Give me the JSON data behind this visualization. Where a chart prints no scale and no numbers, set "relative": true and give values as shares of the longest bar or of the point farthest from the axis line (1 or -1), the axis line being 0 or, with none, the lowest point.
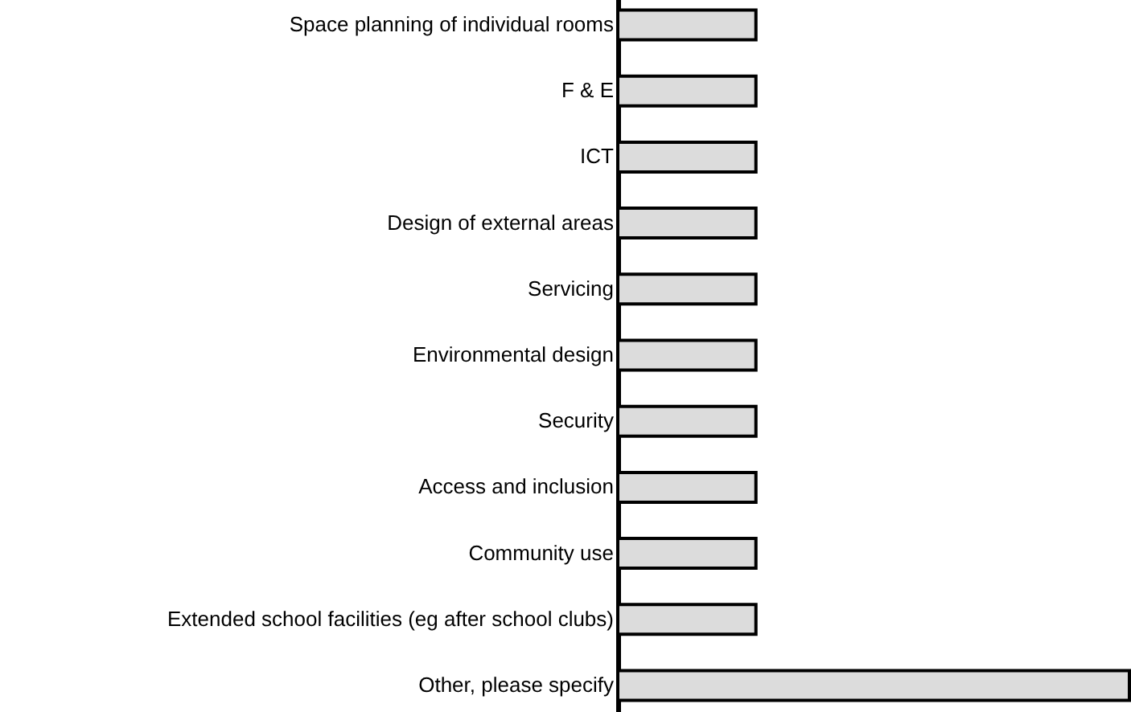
{
  "chart_data": {
    "type": "bar",
    "orientation": "horizontal",
    "relative": true,
    "categories": [
      "Space planning of individual rooms",
      "F & E",
      "ICT",
      "Design of external areas",
      "Servicing ",
      "Environmental design",
      "Security",
      "Access and inclusion",
      "Community use",
      "Extended school facilities (eg after school clubs)",
      "Other, please specify"
    ],
    "values": [
      0.27,
      0.27,
      0.27,
      0.27,
      0.27,
      0.27,
      0.27,
      0.27,
      0.27,
      0.27,
      1
    ],
    "color": "#dcdcdc"
  }
}
